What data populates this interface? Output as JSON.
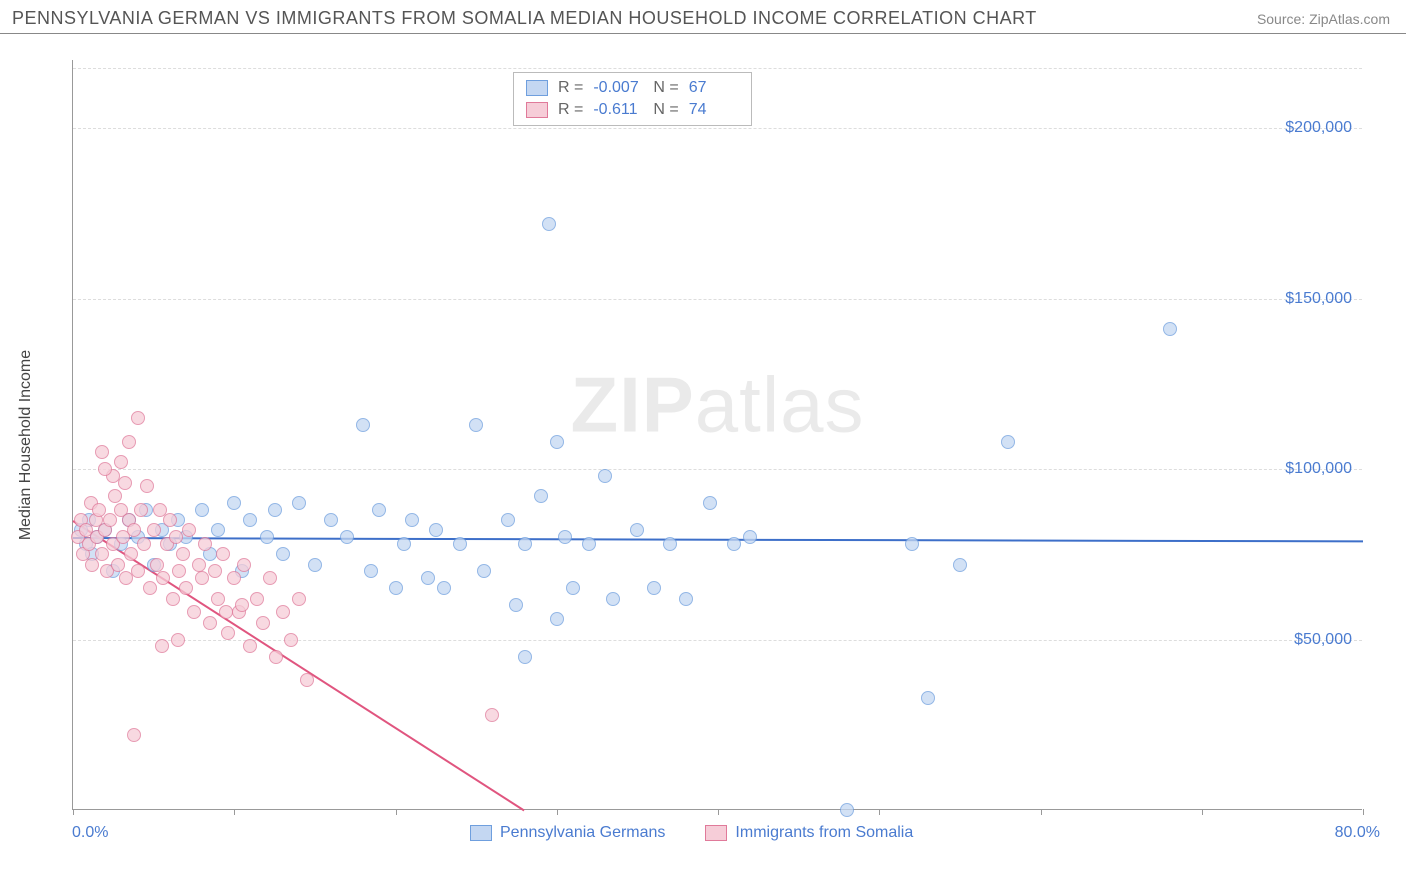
{
  "header": {
    "title": "PENNSYLVANIA GERMAN VS IMMIGRANTS FROM SOMALIA MEDIAN HOUSEHOLD INCOME CORRELATION CHART",
    "source": "Source: ZipAtlas.com"
  },
  "chart": {
    "type": "scatter",
    "ylabel": "Median Household Income",
    "xlim": [
      0,
      80
    ],
    "ylim": [
      0,
      220000
    ],
    "xaxis": {
      "min_label": "0.0%",
      "max_label": "80.0%",
      "tick_positions": [
        0,
        10,
        20,
        30,
        40,
        50,
        60,
        70,
        80
      ]
    },
    "yaxis": {
      "ticks": [
        {
          "value": 50000,
          "label": "$50,000"
        },
        {
          "value": 100000,
          "label": "$100,000"
        },
        {
          "value": 150000,
          "label": "$150,000"
        },
        {
          "value": 200000,
          "label": "$200,000"
        }
      ]
    },
    "grid_color": "#dddddd",
    "background_color": "#ffffff",
    "watermark": "ZIPatlas",
    "stats": [
      {
        "r_label": "R =",
        "r": "-0.007",
        "n_label": "N =",
        "n": "67",
        "swatch_fill": "#c4d7f2",
        "swatch_border": "#6f9fde"
      },
      {
        "r_label": "R =",
        "r": "-0.611",
        "n_label": "N =",
        "n": "74",
        "swatch_fill": "#f6cdd8",
        "swatch_border": "#e07a9a"
      }
    ],
    "legend": [
      {
        "label": "Pennsylvania Germans",
        "swatch_fill": "#c4d7f2",
        "swatch_border": "#6f9fde"
      },
      {
        "label": "Immigrants from Somalia",
        "swatch_fill": "#f6cdd8",
        "swatch_border": "#e07a9a"
      }
    ],
    "series": [
      {
        "name": "Pennsylvania Germans",
        "color_fill": "#c4d7f2",
        "color_border": "#6f9fde",
        "trend": {
          "x1": 0,
          "y1": 80000,
          "x2": 80,
          "y2": 79000,
          "color": "#3d6fc9"
        },
        "points": [
          [
            0.5,
            82000
          ],
          [
            0.8,
            78000
          ],
          [
            1.0,
            85000
          ],
          [
            1.2,
            75000
          ],
          [
            1.5,
            80000
          ],
          [
            2.0,
            82000
          ],
          [
            2.5,
            70000
          ],
          [
            3.0,
            78000
          ],
          [
            3.5,
            85000
          ],
          [
            4.0,
            80000
          ],
          [
            4.5,
            88000
          ],
          [
            5.0,
            72000
          ],
          [
            5.5,
            82000
          ],
          [
            6.0,
            78000
          ],
          [
            6.5,
            85000
          ],
          [
            7.0,
            80000
          ],
          [
            8.0,
            88000
          ],
          [
            8.5,
            75000
          ],
          [
            9.0,
            82000
          ],
          [
            10.0,
            90000
          ],
          [
            10.5,
            70000
          ],
          [
            11.0,
            85000
          ],
          [
            12.0,
            80000
          ],
          [
            12.5,
            88000
          ],
          [
            13.0,
            75000
          ],
          [
            14.0,
            90000
          ],
          [
            15.0,
            72000
          ],
          [
            16.0,
            85000
          ],
          [
            17.0,
            80000
          ],
          [
            18.0,
            113000
          ],
          [
            18.5,
            70000
          ],
          [
            19.0,
            88000
          ],
          [
            20.0,
            65000
          ],
          [
            20.5,
            78000
          ],
          [
            21.0,
            85000
          ],
          [
            22.0,
            68000
          ],
          [
            22.5,
            82000
          ],
          [
            23.0,
            65000
          ],
          [
            24.0,
            78000
          ],
          [
            25.0,
            113000
          ],
          [
            25.5,
            70000
          ],
          [
            27.0,
            85000
          ],
          [
            27.5,
            60000
          ],
          [
            28.0,
            78000
          ],
          [
            29.0,
            92000
          ],
          [
            30.0,
            56000
          ],
          [
            30.5,
            80000
          ],
          [
            31.0,
            65000
          ],
          [
            32.0,
            78000
          ],
          [
            33.0,
            98000
          ],
          [
            33.5,
            62000
          ],
          [
            35.0,
            82000
          ],
          [
            36.0,
            65000
          ],
          [
            37.0,
            78000
          ],
          [
            38.0,
            62000
          ],
          [
            39.5,
            90000
          ],
          [
            41.0,
            78000
          ],
          [
            42.0,
            80000
          ],
          [
            52.0,
            78000
          ],
          [
            53.0,
            33000
          ],
          [
            55.0,
            72000
          ],
          [
            58.0,
            108000
          ],
          [
            68.0,
            141000
          ],
          [
            29.5,
            172000
          ],
          [
            28.0,
            45000
          ],
          [
            30.0,
            108000
          ],
          [
            48.0,
            0
          ]
        ]
      },
      {
        "name": "Immigrants from Somalia",
        "color_fill": "#f6cdd8",
        "color_border": "#e07a9a",
        "trend": {
          "x1": 0,
          "y1": 85000,
          "x2": 28,
          "y2": 0,
          "color": "#e0557f"
        },
        "points": [
          [
            0.3,
            80000
          ],
          [
            0.5,
            85000
          ],
          [
            0.6,
            75000
          ],
          [
            0.8,
            82000
          ],
          [
            1.0,
            78000
          ],
          [
            1.1,
            90000
          ],
          [
            1.2,
            72000
          ],
          [
            1.4,
            85000
          ],
          [
            1.5,
            80000
          ],
          [
            1.6,
            88000
          ],
          [
            1.8,
            75000
          ],
          [
            2.0,
            82000
          ],
          [
            2.1,
            70000
          ],
          [
            2.3,
            85000
          ],
          [
            2.5,
            78000
          ],
          [
            2.6,
            92000
          ],
          [
            2.8,
            72000
          ],
          [
            3.0,
            88000
          ],
          [
            3.1,
            80000
          ],
          [
            3.3,
            68000
          ],
          [
            3.5,
            85000
          ],
          [
            3.6,
            75000
          ],
          [
            3.8,
            82000
          ],
          [
            4.0,
            70000
          ],
          [
            4.2,
            88000
          ],
          [
            4.4,
            78000
          ],
          [
            4.6,
            95000
          ],
          [
            4.8,
            65000
          ],
          [
            5.0,
            82000
          ],
          [
            5.2,
            72000
          ],
          [
            5.4,
            88000
          ],
          [
            5.6,
            68000
          ],
          [
            5.8,
            78000
          ],
          [
            6.0,
            85000
          ],
          [
            6.2,
            62000
          ],
          [
            6.4,
            80000
          ],
          [
            6.6,
            70000
          ],
          [
            6.8,
            75000
          ],
          [
            7.0,
            65000
          ],
          [
            7.2,
            82000
          ],
          [
            7.5,
            58000
          ],
          [
            7.8,
            72000
          ],
          [
            8.0,
            68000
          ],
          [
            8.2,
            78000
          ],
          [
            8.5,
            55000
          ],
          [
            8.8,
            70000
          ],
          [
            9.0,
            62000
          ],
          [
            9.3,
            75000
          ],
          [
            9.6,
            52000
          ],
          [
            10.0,
            68000
          ],
          [
            10.3,
            58000
          ],
          [
            10.6,
            72000
          ],
          [
            11.0,
            48000
          ],
          [
            11.4,
            62000
          ],
          [
            11.8,
            55000
          ],
          [
            12.2,
            68000
          ],
          [
            12.6,
            45000
          ],
          [
            13.0,
            58000
          ],
          [
            13.5,
            50000
          ],
          [
            14.0,
            62000
          ],
          [
            2.5,
            98000
          ],
          [
            3.0,
            102000
          ],
          [
            1.8,
            105000
          ],
          [
            3.5,
            108000
          ],
          [
            2.0,
            100000
          ],
          [
            4.0,
            115000
          ],
          [
            3.2,
            96000
          ],
          [
            5.5,
            48000
          ],
          [
            6.5,
            50000
          ],
          [
            9.5,
            58000
          ],
          [
            10.5,
            60000
          ],
          [
            3.8,
            22000
          ],
          [
            14.5,
            38000
          ],
          [
            26.0,
            28000
          ]
        ]
      }
    ]
  }
}
